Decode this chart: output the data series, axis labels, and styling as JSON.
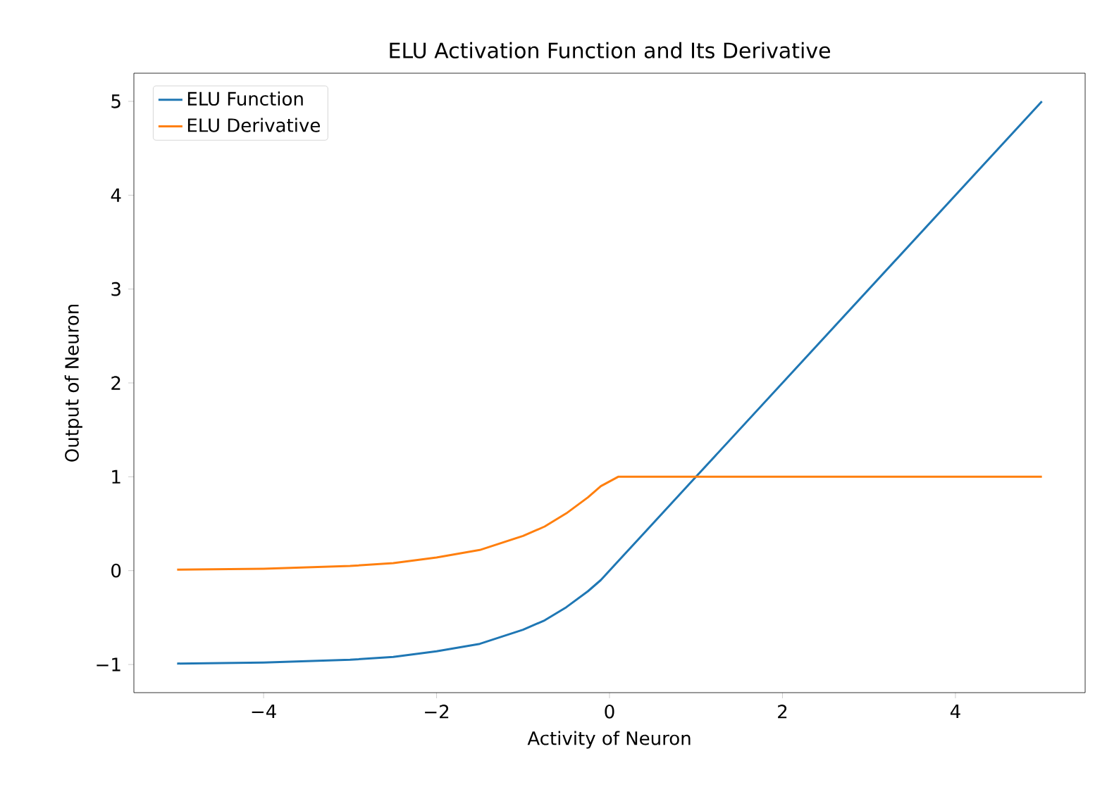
{
  "chart_data": {
    "type": "line",
    "title": "ELU Activation Function and Its Derivative",
    "xlabel": "Activity of Neuron",
    "ylabel": "Output of Neuron",
    "x": [
      -5,
      -4,
      -3,
      -2.5,
      -2,
      -1.5,
      -1,
      -0.75,
      -0.5,
      -0.25,
      -0.1,
      0.1,
      1,
      5
    ],
    "series": [
      {
        "name": "ELU Function",
        "color": "#1f77b4",
        "values": [
          -0.99,
          -0.98,
          -0.95,
          -0.92,
          -0.86,
          -0.78,
          -0.63,
          -0.53,
          -0.39,
          -0.22,
          -0.1,
          0.1,
          1,
          5
        ]
      },
      {
        "name": "ELU Derivative",
        "color": "#ff7f0e",
        "values": [
          0.01,
          0.02,
          0.05,
          0.08,
          0.14,
          0.22,
          0.37,
          0.47,
          0.61,
          0.78,
          0.9,
          1,
          1,
          1
        ]
      }
    ],
    "xlim": [
      -5.5,
      5.5
    ],
    "ylim": [
      -1.3,
      5.3
    ],
    "xticks": [
      {
        "value": -4,
        "label": "−4"
      },
      {
        "value": -2,
        "label": "−2"
      },
      0,
      2,
      4
    ],
    "yticks": [
      {
        "value": -1,
        "label": "−1"
      },
      0,
      1,
      2,
      3,
      4,
      5
    ],
    "legend": "top left",
    "grid": false,
    "marker": "none",
    "line_style": "solid"
  }
}
